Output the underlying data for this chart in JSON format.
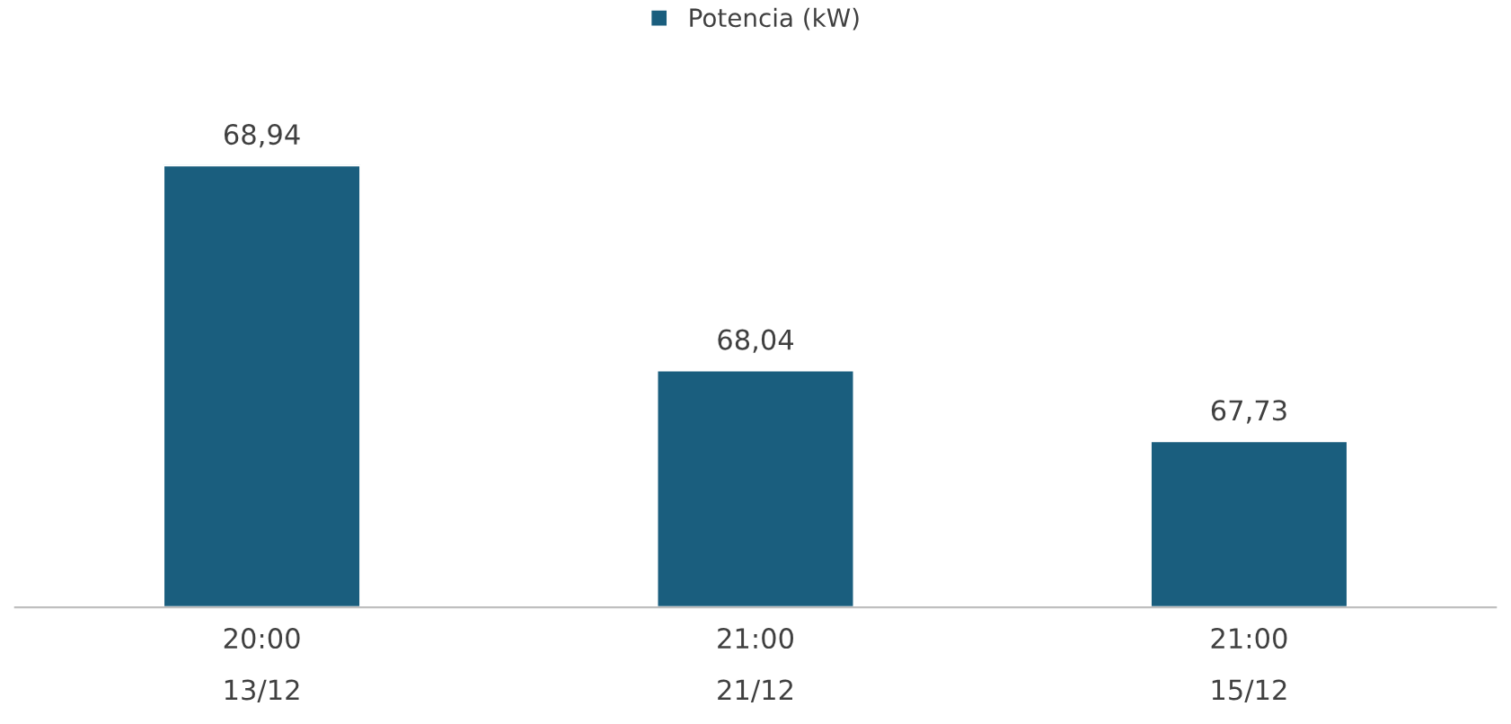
{
  "chart_data": {
    "type": "bar",
    "categories": [
      "20:00\n13/12",
      "21:00\n21/12",
      "21:00\n15/12"
    ],
    "series": [
      {
        "name": "Potencia (kW)",
        "color": "#1a5e7e",
        "values": [
          68.94,
          68.04,
          67.73
        ],
        "value_labels": [
          "68,94",
          "68,04",
          "67,73"
        ]
      }
    ],
    "ylim": [
      67.0,
      68.94
    ],
    "tick_labels": "x",
    "legend": "top",
    "grid": false
  }
}
